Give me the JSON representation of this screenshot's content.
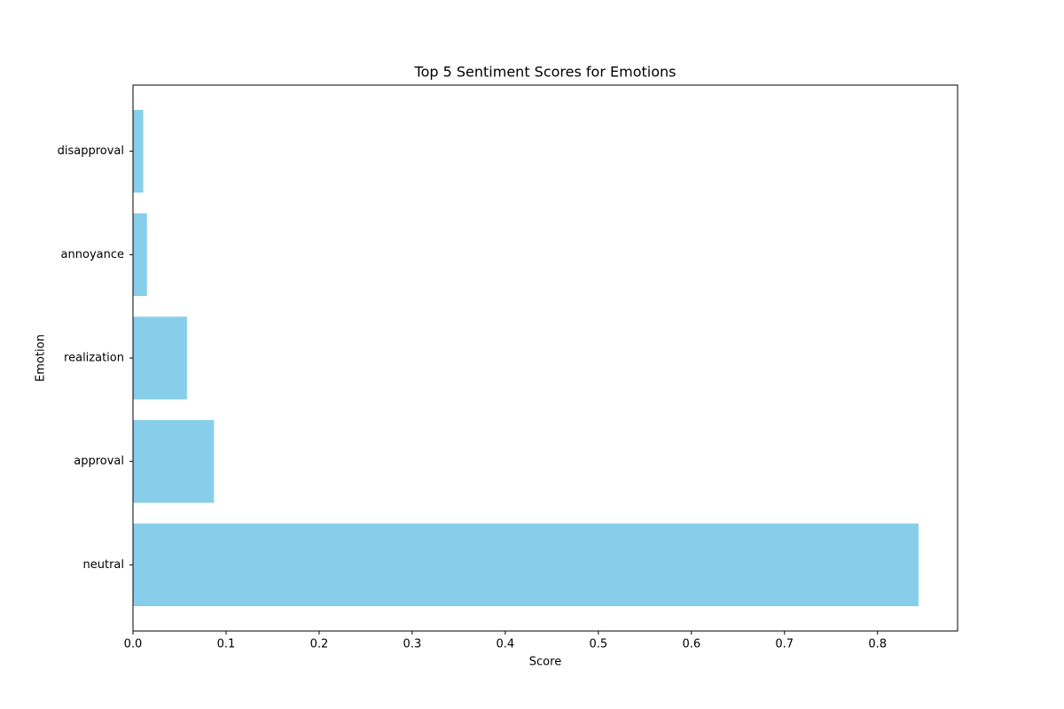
{
  "chart_data": {
    "type": "barh",
    "title": "Top 5 Sentiment Scores for Emotions",
    "x_label": "Score",
    "y_label": "Emotion",
    "categories": [
      "neutral",
      "approval",
      "realization",
      "annoyance",
      "disapproval"
    ],
    "values": [
      0.844,
      0.087,
      0.058,
      0.015,
      0.011
    ],
    "color": "#87ceeb",
    "xlim": [
      0,
      0.886
    ],
    "xticks": [
      {
        "value": 0,
        "label": "0.0"
      },
      0.1,
      0.2,
      0.3,
      0.4,
      0.5,
      0.6,
      0.7,
      0.8
    ]
  }
}
